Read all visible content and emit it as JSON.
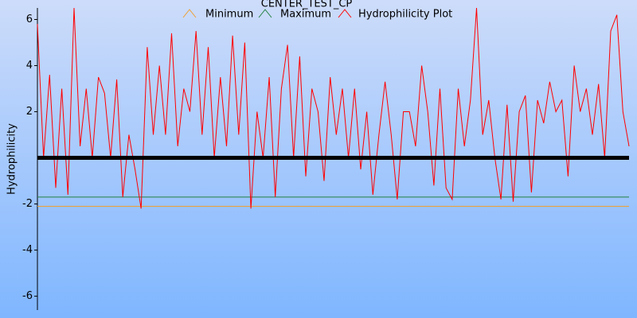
{
  "chart_data": {
    "type": "line",
    "title": "CENTER_TEST_CP",
    "y_label": "Hydrophilicity",
    "ylim": [
      -6.6,
      6.5
    ],
    "yticks": [
      -6,
      -4,
      -2,
      2,
      4,
      6
    ],
    "zero_line": true,
    "series": [
      {
        "name": "Minimum",
        "color": "#f0a030",
        "value": -2.1
      },
      {
        "name": "Maximum",
        "color": "#208040",
        "value": -1.7
      },
      {
        "name": "Hydrophilicity Plot",
        "color": "#ff0000",
        "values": [
          5.8,
          0,
          3.6,
          -1.3,
          3,
          -1.6,
          6.5,
          0.5,
          3,
          0,
          3.5,
          2.8,
          0,
          3.4,
          -1.7,
          1,
          -0.5,
          -2.2,
          4.8,
          1,
          4,
          1,
          5.4,
          0.5,
          3,
          2,
          5.5,
          1,
          4.8,
          0,
          3.5,
          0.5,
          5.3,
          1,
          5,
          -2.2,
          2,
          0,
          3.5,
          -1.7,
          3,
          4.9,
          0,
          4.4,
          -0.8,
          3,
          2,
          -1,
          3.5,
          1,
          3,
          0,
          3,
          -0.5,
          2,
          -1.6,
          1,
          3.3,
          1,
          -1.8,
          2,
          2,
          0.5,
          4,
          2,
          -1.2,
          3,
          -1.3,
          -1.8,
          3,
          0.5,
          2.5,
          6.5,
          1,
          2.5,
          0,
          -1.8,
          2.3,
          -1.9,
          2,
          2.7,
          -1.5,
          2.5,
          1.5,
          3.3,
          2,
          2.5,
          -0.8,
          4,
          2,
          3,
          1,
          3.2,
          0,
          5.5,
          6.2,
          2,
          0.5
        ]
      }
    ]
  }
}
